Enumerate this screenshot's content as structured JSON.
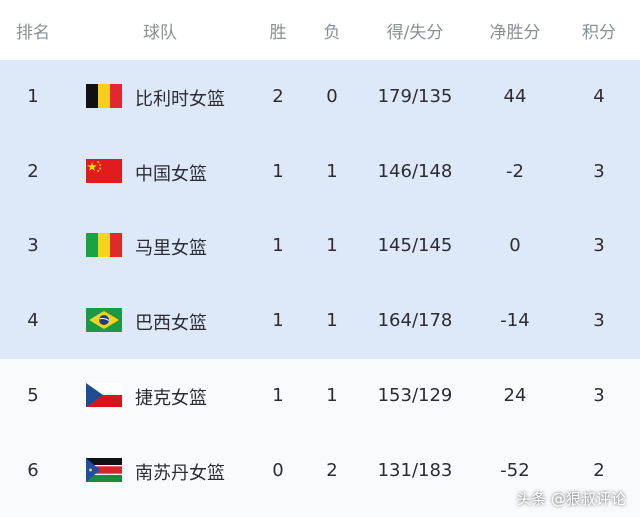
{
  "header": {
    "rank": "排名",
    "team": "球队",
    "wins": "胜",
    "losses": "负",
    "score": "得/失分",
    "diff": "净胜分",
    "points": "积分"
  },
  "highlight_color": "#dde9f8",
  "rows": [
    {
      "rank": "1",
      "team": "比利时女篮",
      "flag": "belgium-flag",
      "wins": "2",
      "losses": "0",
      "score": "179/135",
      "diff": "44",
      "points": "4",
      "highlighted": true
    },
    {
      "rank": "2",
      "team": "中国女篮",
      "flag": "china-flag",
      "wins": "1",
      "losses": "1",
      "score": "146/148",
      "diff": "-2",
      "points": "3",
      "highlighted": true
    },
    {
      "rank": "3",
      "team": "马里女篮",
      "flag": "mali-flag",
      "wins": "1",
      "losses": "1",
      "score": "145/145",
      "diff": "0",
      "points": "3",
      "highlighted": true
    },
    {
      "rank": "4",
      "team": "巴西女篮",
      "flag": "brazil-flag",
      "wins": "1",
      "losses": "1",
      "score": "164/178",
      "diff": "-14",
      "points": "3",
      "highlighted": true
    },
    {
      "rank": "5",
      "team": "捷克女篮",
      "flag": "czech-flag",
      "wins": "1",
      "losses": "1",
      "score": "153/129",
      "diff": "24",
      "points": "3",
      "highlighted": false
    },
    {
      "rank": "6",
      "team": "南苏丹女篮",
      "flag": "south-sudan-flag",
      "wins": "0",
      "losses": "2",
      "score": "131/183",
      "diff": "-52",
      "points": "2",
      "highlighted": false
    }
  ],
  "watermark": "头条 @狠叔评论"
}
